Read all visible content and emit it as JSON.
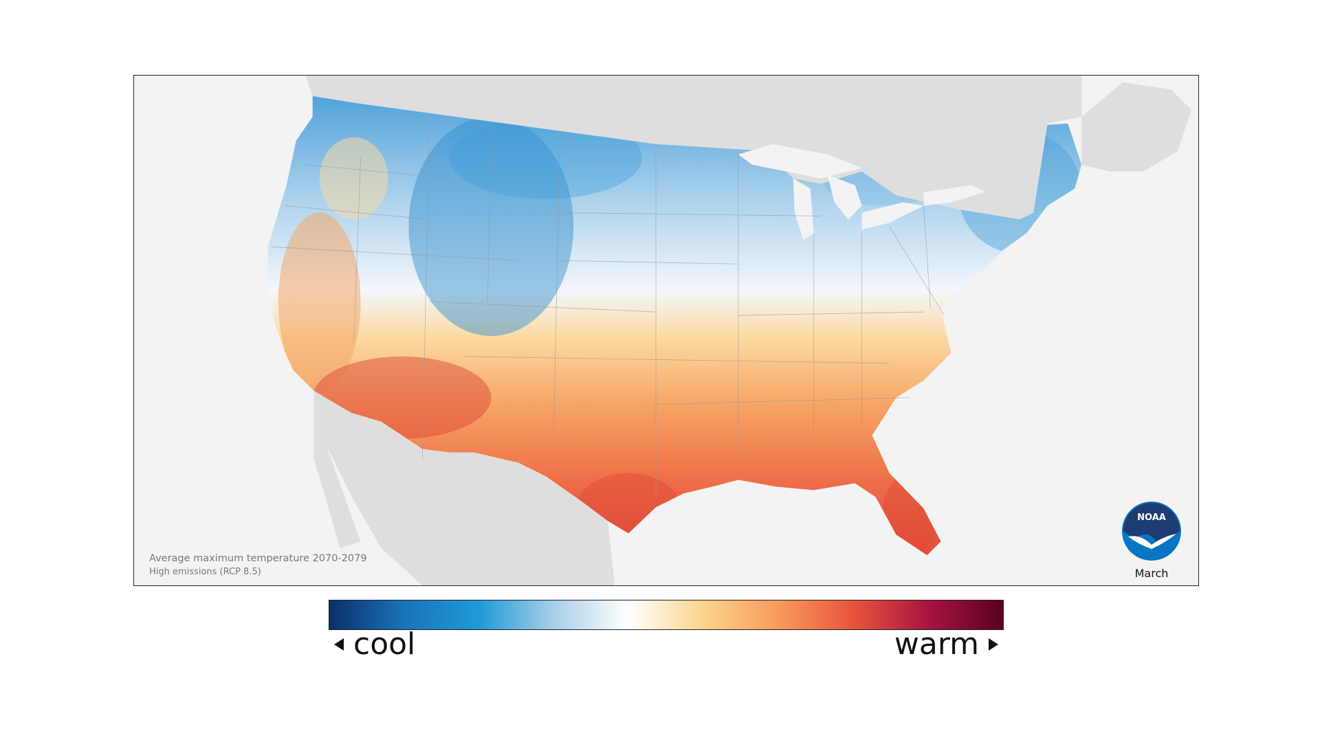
{
  "map": {
    "caption_title": "Average maximum temperature 2070-2079",
    "caption_subtitle": "High emissions (RCP 8.5)",
    "month": "March",
    "logo_text": "NOAA",
    "logo_icon": "noaa-logo-icon"
  },
  "legend": {
    "low_label": "cool",
    "high_label": "warm",
    "low_arrow_icon": "triangle-left-icon",
    "high_arrow_icon": "triangle-right-icon",
    "gradient_colors": [
      "#0b2f6b",
      "#1a73b8",
      "#1f9ad6",
      "#a9cfe8",
      "#ffffff",
      "#fbd38a",
      "#f79a5b",
      "#e8543c",
      "#a81440",
      "#5a0020"
    ]
  },
  "colors": {
    "land_other": "#dedede",
    "water": "#f3f3f3",
    "cool_region": "#7fb8e0",
    "warm_region": "#ef6a3f"
  }
}
